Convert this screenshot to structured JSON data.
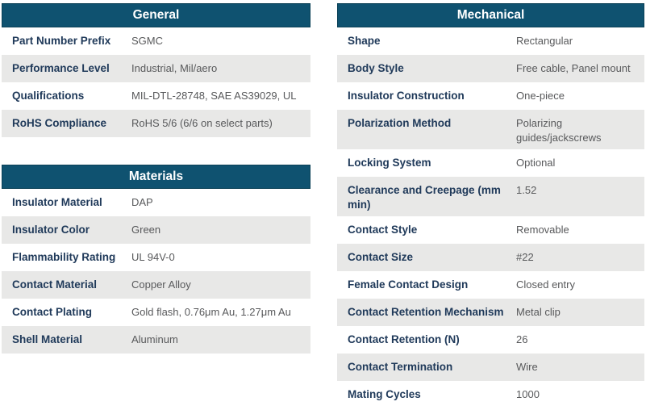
{
  "colors": {
    "header_bg": "#0f5270",
    "header_border": "#0b4157",
    "header_text": "#ffffff",
    "row_alt_bg": "#e8e8e7",
    "label_text": "#203a5a",
    "value_text": "#58595b",
    "page_bg": "#ffffff"
  },
  "tables": [
    {
      "id": "general",
      "title": "General",
      "rows": [
        {
          "label": "Part Number Prefix",
          "value": "SGMC"
        },
        {
          "label": "Performance Level",
          "value": "Industrial, Mil/aero"
        },
        {
          "label": "Qualifications",
          "value": "MIL-DTL-28748, SAE AS39029, UL"
        },
        {
          "label": "RoHS Compliance",
          "value": "RoHS 5/6 (6/6 on select parts)"
        }
      ]
    },
    {
      "id": "materials",
      "title": "Materials",
      "rows": [
        {
          "label": "Insulator Material",
          "value": "DAP"
        },
        {
          "label": "Insulator Color",
          "value": "Green"
        },
        {
          "label": "Flammability Rating",
          "value": "UL 94V-0"
        },
        {
          "label": "Contact Material",
          "value": "Copper Alloy"
        },
        {
          "label": "Contact Plating",
          "value": "Gold flash, 0.76μm Au, 1.27μm Au"
        },
        {
          "label": "Shell Material",
          "value": "Aluminum"
        }
      ]
    },
    {
      "id": "mechanical",
      "title": "Mechanical",
      "rows": [
        {
          "label": "Shape",
          "value": "Rectangular"
        },
        {
          "label": "Body Style",
          "value": "Free cable, Panel mount"
        },
        {
          "label": "Insulator Construction",
          "value": "One-piece"
        },
        {
          "label": "Polarization Method",
          "value": "Polarizing guides/jackscrews"
        },
        {
          "label": "Locking System",
          "value": "Optional"
        },
        {
          "label": "Clearance and Creepage (mm min)",
          "value": "1.52"
        },
        {
          "label": "Contact Style",
          "value": "Removable"
        },
        {
          "label": "Contact Size",
          "value": "#22"
        },
        {
          "label": "Female Contact Design",
          "value": "Closed entry"
        },
        {
          "label": "Contact Retention Mechanism",
          "value": "Metal clip"
        },
        {
          "label": "Contact Retention (N)",
          "value": "26"
        },
        {
          "label": "Contact Termination",
          "value": "Wire"
        },
        {
          "label": "Mating Cycles",
          "value": "1000"
        }
      ]
    }
  ]
}
